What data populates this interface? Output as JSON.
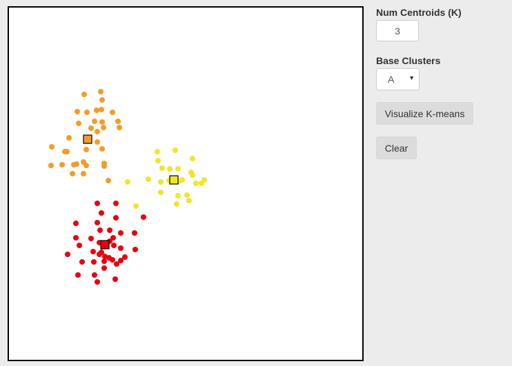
{
  "sidebar": {
    "num_centroids_label": "Num Centroids (K)",
    "num_centroids_value": "3",
    "base_clusters_label": "Base Clusters",
    "base_clusters_value": "A",
    "visualize_button": "Visualize K-means",
    "clear_button": "Clear"
  },
  "chart_data": {
    "type": "scatter",
    "title": "",
    "xlabel": "",
    "ylabel": "",
    "xlim": [
      0,
      512
    ],
    "ylim": [
      0,
      511
    ],
    "grid": false,
    "series": [
      {
        "color": "#f39c2a",
        "points": [
          [
            109,
            126
          ],
          [
            133,
            122
          ],
          [
            135,
            134
          ],
          [
            99,
            151
          ],
          [
            113,
            152
          ],
          [
            127,
            149
          ],
          [
            134,
            148
          ],
          [
            150,
            152
          ],
          [
            101,
            168
          ],
          [
            124,
            165
          ],
          [
            135,
            166
          ],
          [
            158,
            165
          ],
          [
            119,
            175
          ],
          [
            128,
            180
          ],
          [
            137,
            174
          ],
          [
            160,
            174
          ],
          [
            87,
            189
          ],
          [
            112,
            191
          ],
          [
            128,
            195
          ],
          [
            62,
            202
          ],
          [
            81,
            209
          ],
          [
            84,
            209
          ],
          [
            112,
            206
          ],
          [
            135,
            205
          ],
          [
            61,
            229
          ],
          [
            77,
            228
          ],
          [
            94,
            228
          ],
          [
            98,
            227
          ],
          [
            108,
            224
          ],
          [
            138,
            226
          ],
          [
            112,
            229
          ],
          [
            138,
            230
          ],
          [
            92,
            241
          ],
          [
            108,
            241
          ],
          [
            144,
            251
          ]
        ],
        "centroid": [
          114,
          191
        ]
      },
      {
        "color": "#f0e62a",
        "points": [
          [
            215,
            209
          ],
          [
            241,
            207
          ],
          [
            266,
            219
          ],
          [
            216,
            222
          ],
          [
            222,
            233
          ],
          [
            233,
            234
          ],
          [
            245,
            234
          ],
          [
            264,
            239
          ],
          [
            202,
            249
          ],
          [
            220,
            253
          ],
          [
            232,
            251
          ],
          [
            246,
            252
          ],
          [
            266,
            243
          ],
          [
            271,
            255
          ],
          [
            283,
            250
          ],
          [
            251,
            250
          ],
          [
            279,
            255
          ],
          [
            236,
            248
          ],
          [
            220,
            268
          ],
          [
            245,
            273
          ],
          [
            258,
            272
          ],
          [
            172,
            253
          ],
          [
            243,
            285
          ],
          [
            261,
            280
          ],
          [
            184,
            288
          ]
        ],
        "centroid": [
          239,
          250
        ]
      },
      {
        "color": "#e8000e",
        "points": [
          [
            128,
            284
          ],
          [
            155,
            284
          ],
          [
            134,
            298
          ],
          [
            195,
            304
          ],
          [
            155,
            305
          ],
          [
            97,
            313
          ],
          [
            128,
            312
          ],
          [
            132,
            323
          ],
          [
            146,
            323
          ],
          [
            162,
            327
          ],
          [
            182,
            327
          ],
          [
            97,
            334
          ],
          [
            119,
            335
          ],
          [
            131,
            341
          ],
          [
            146,
            339
          ],
          [
            151,
            334
          ],
          [
            102,
            345
          ],
          [
            152,
            345
          ],
          [
            162,
            349
          ],
          [
            122,
            354
          ],
          [
            183,
            351
          ],
          [
            134,
            355
          ],
          [
            85,
            358
          ],
          [
            131,
            358
          ],
          [
            139,
            361
          ],
          [
            145,
            363
          ],
          [
            162,
            367
          ],
          [
            106,
            369
          ],
          [
            138,
            368
          ],
          [
            123,
            369
          ],
          [
            150,
            366
          ],
          [
            168,
            362
          ],
          [
            156,
            372
          ],
          [
            138,
            378
          ],
          [
            100,
            388
          ],
          [
            124,
            388
          ],
          [
            154,
            394
          ],
          [
            128,
            398
          ]
        ],
        "centroid": [
          139,
          344
        ]
      }
    ]
  }
}
